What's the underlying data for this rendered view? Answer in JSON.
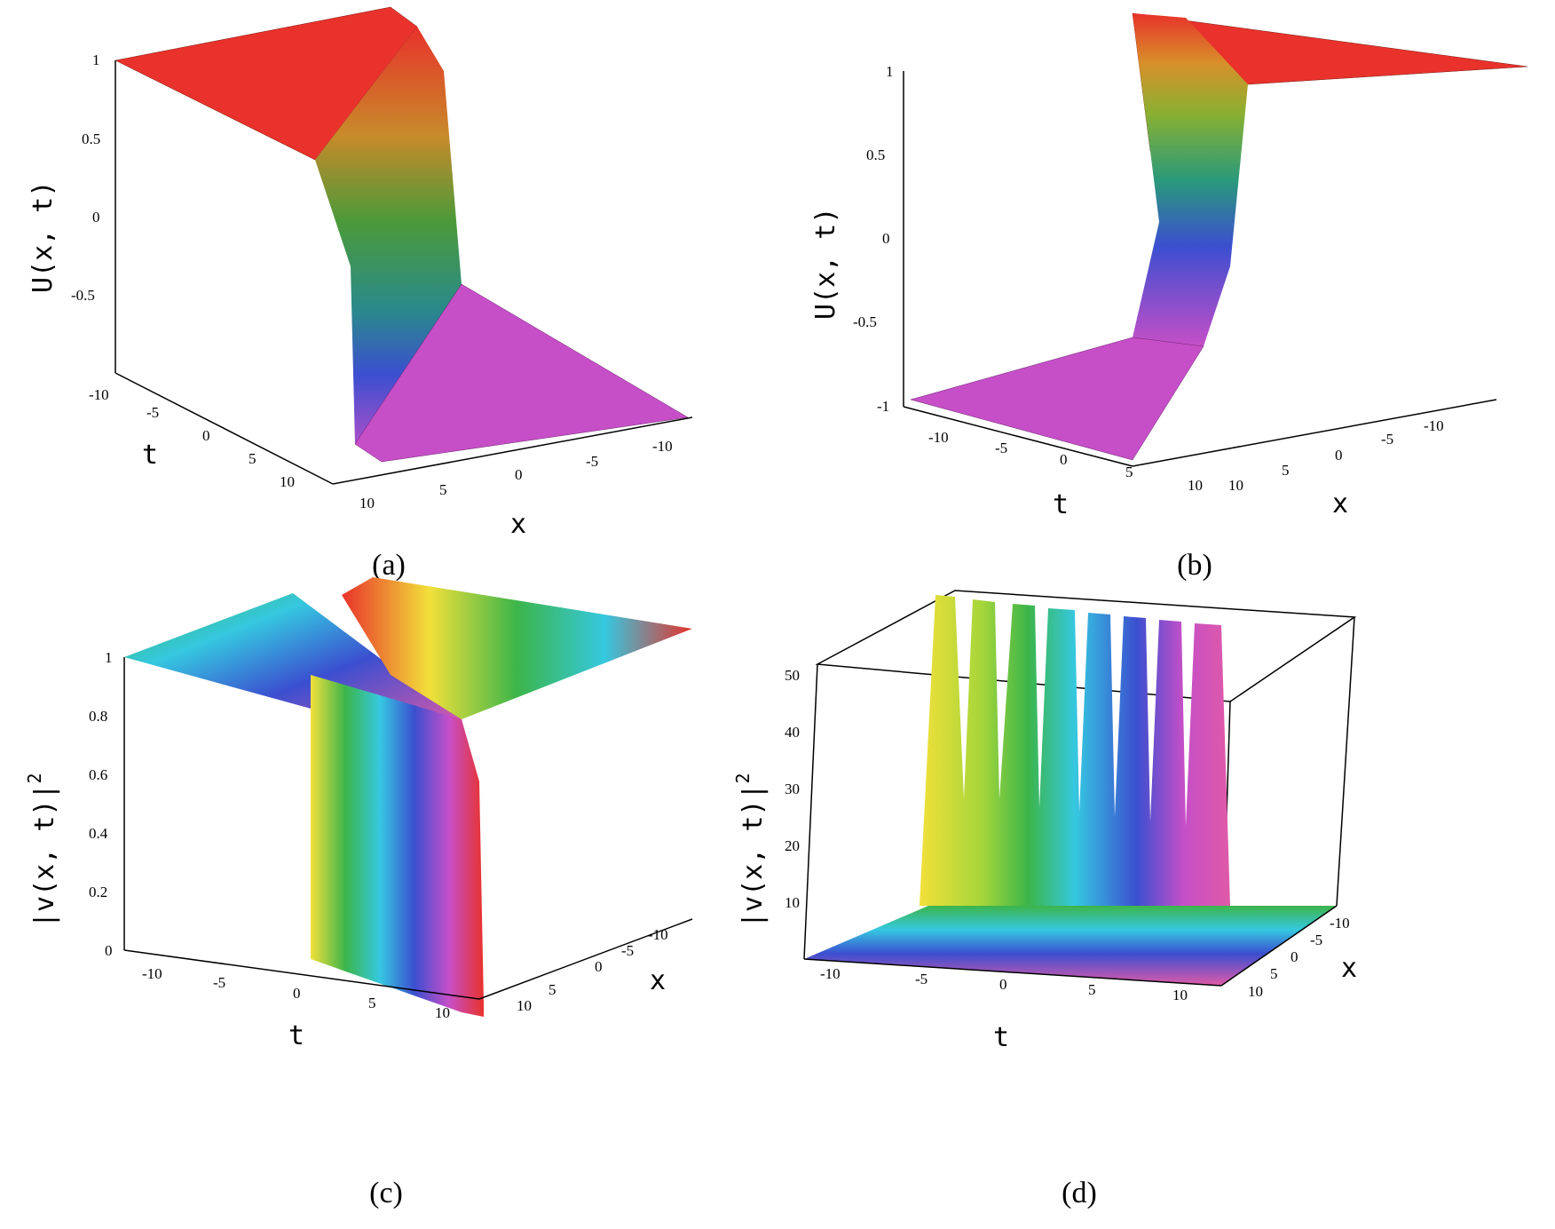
{
  "panels": [
    {
      "id": "a",
      "caption": "(a)",
      "zlabel": "U(x, t)",
      "xlabel": "x",
      "tlabel": "t",
      "z_ticks": [
        "1",
        "0.5",
        "0",
        "-0.5"
      ],
      "t_ticks": [
        "-10",
        "-5",
        "0",
        "5",
        "10"
      ],
      "x_ticks": [
        "10",
        "5",
        "0",
        "-5",
        "-10"
      ]
    },
    {
      "id": "b",
      "caption": "(b)",
      "zlabel": "U(x, t)",
      "xlabel": "x",
      "tlabel": "t",
      "z_ticks": [
        "1",
        "0.5",
        "0",
        "-0.5",
        "-1"
      ],
      "t_ticks": [
        "-10",
        "-5",
        "0",
        "5",
        "10"
      ],
      "x_ticks": [
        "10",
        "5",
        "0",
        "-5",
        "-10"
      ]
    },
    {
      "id": "c",
      "caption": "(c)",
      "zlabel": "|v(x, t)|",
      "zlabel_sup": "2",
      "xlabel": "x",
      "tlabel": "t",
      "z_ticks": [
        "1",
        "0.8",
        "0.6",
        "0.4",
        "0.2",
        "0"
      ],
      "t_ticks": [
        "-10",
        "-5",
        "0",
        "5",
        "10"
      ],
      "x_ticks": [
        "10",
        "5",
        "0",
        "-5",
        "-10"
      ]
    },
    {
      "id": "d",
      "caption": "(d)",
      "zlabel": "|v(x, t)|",
      "zlabel_sup": "2",
      "xlabel": "x",
      "tlabel": "t",
      "z_ticks": [
        "50",
        "40",
        "30",
        "20",
        "10"
      ],
      "t_ticks": [
        "-10",
        "-5",
        "0",
        "5",
        "10"
      ],
      "x_ticks": [
        "10",
        "5",
        "0",
        "-5",
        "-10"
      ]
    }
  ],
  "colors": {
    "red": "#e8322b",
    "magenta": "#c64fc8",
    "yellow": "#f2e03a",
    "green": "#3cb54a",
    "cyan": "#35c8e0",
    "blue": "#3b4fd0",
    "pink": "#e05aa8"
  }
}
